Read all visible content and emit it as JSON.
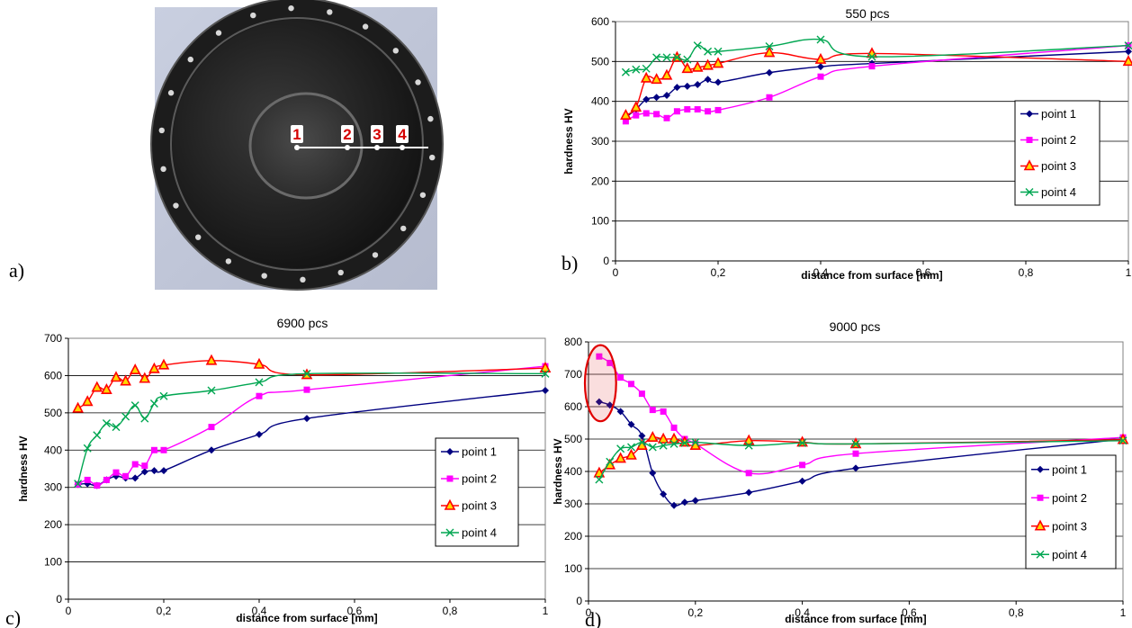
{
  "panel_labels": [
    "a)",
    "b)",
    "c)",
    "d)"
  ],
  "photo": {
    "point_labels": [
      "1",
      "2",
      "3",
      "4"
    ]
  },
  "colors": {
    "point_1": "#000080",
    "point_2": "#ff00ff",
    "point_3": "#ff0000",
    "point_3_marker": "#ffd700",
    "point_4": "#00a651",
    "highlight_ellipse": "#e00000"
  },
  "chart_data": [
    {
      "type": "line",
      "panel": "b)",
      "title": "550 pcs",
      "xlabel": "distance from surface [mm]",
      "ylabel": "hardness HV",
      "xlim": [
        0,
        1
      ],
      "ylim": [
        0,
        600
      ],
      "xticks": [
        0,
        0.2,
        0.4,
        0.6,
        0.8,
        1
      ],
      "xtick_labels": [
        "0",
        "0,2",
        "0,4",
        "0,6",
        "0,8",
        "1"
      ],
      "yticks": [
        0,
        100,
        200,
        300,
        400,
        500,
        600
      ],
      "ytick_labels": [
        "0",
        "100",
        "200",
        "300",
        "400",
        "500",
        "600"
      ],
      "grid": "horizontal",
      "legend": "right",
      "series": [
        {
          "name": "point 1",
          "marker": "diamond",
          "x": [
            0.02,
            0.04,
            0.06,
            0.08,
            0.1,
            0.12,
            0.14,
            0.16,
            0.18,
            0.2,
            0.3,
            0.4,
            0.5,
            1.0
          ],
          "y": [
            360,
            380,
            405,
            410,
            415,
            435,
            438,
            442,
            455,
            448,
            472,
            487,
            495,
            525
          ]
        },
        {
          "name": "point 2",
          "marker": "square",
          "x": [
            0.02,
            0.04,
            0.06,
            0.08,
            0.1,
            0.12,
            0.14,
            0.16,
            0.18,
            0.2,
            0.3,
            0.4,
            0.5,
            1.0
          ],
          "y": [
            350,
            365,
            370,
            368,
            358,
            375,
            380,
            380,
            375,
            378,
            410,
            462,
            488,
            540
          ]
        },
        {
          "name": "point 3",
          "marker": "triangle",
          "x": [
            0.02,
            0.04,
            0.06,
            0.08,
            0.1,
            0.12,
            0.14,
            0.16,
            0.18,
            0.2,
            0.3,
            0.4,
            0.5,
            1.0
          ],
          "y": [
            365,
            385,
            458,
            455,
            465,
            510,
            482,
            485,
            490,
            495,
            522,
            505,
            520,
            500
          ]
        },
        {
          "name": "point 4",
          "marker": "x",
          "x": [
            0.02,
            0.04,
            0.06,
            0.08,
            0.1,
            0.12,
            0.14,
            0.16,
            0.18,
            0.2,
            0.3,
            0.4,
            0.5,
            1.0
          ],
          "y": [
            473,
            480,
            482,
            510,
            510,
            510,
            505,
            540,
            525,
            525,
            538,
            555,
            512,
            540
          ]
        }
      ]
    },
    {
      "type": "line",
      "panel": "c)",
      "title": "6900 pcs",
      "xlabel": "distance from surface [mm]",
      "ylabel": "hardness HV",
      "xlim": [
        0,
        1
      ],
      "ylim": [
        0,
        700
      ],
      "xticks": [
        0,
        0.2,
        0.4,
        0.6,
        0.8,
        1
      ],
      "xtick_labels": [
        "0",
        "0,2",
        "0,4",
        "0,6",
        "0,8",
        "1"
      ],
      "yticks": [
        0,
        100,
        200,
        300,
        400,
        500,
        600,
        700
      ],
      "ytick_labels": [
        "0",
        "100",
        "200",
        "300",
        "400",
        "500",
        "600",
        "700"
      ],
      "grid": "horizontal",
      "legend": "right",
      "series": [
        {
          "name": "point 1",
          "marker": "diamond",
          "x": [
            0.02,
            0.04,
            0.06,
            0.08,
            0.1,
            0.12,
            0.14,
            0.16,
            0.18,
            0.2,
            0.3,
            0.4,
            0.5,
            1.0
          ],
          "y": [
            308,
            310,
            305,
            320,
            330,
            325,
            325,
            342,
            345,
            345,
            400,
            442,
            485,
            560
          ]
        },
        {
          "name": "point 2",
          "marker": "square",
          "x": [
            0.02,
            0.04,
            0.06,
            0.08,
            0.1,
            0.12,
            0.14,
            0.16,
            0.18,
            0.2,
            0.3,
            0.4,
            0.5,
            1.0
          ],
          "y": [
            308,
            320,
            305,
            320,
            340,
            330,
            362,
            358,
            400,
            400,
            462,
            545,
            562,
            625
          ]
        },
        {
          "name": "point 3",
          "marker": "triangle",
          "x": [
            0.02,
            0.04,
            0.06,
            0.08,
            0.1,
            0.12,
            0.14,
            0.16,
            0.18,
            0.2,
            0.3,
            0.4,
            0.5,
            1.0
          ],
          "y": [
            512,
            530,
            568,
            562,
            595,
            585,
            615,
            592,
            618,
            628,
            640,
            630,
            602,
            620
          ]
        },
        {
          "name": "point 4",
          "marker": "x",
          "x": [
            0.02,
            0.04,
            0.06,
            0.08,
            0.1,
            0.12,
            0.14,
            0.16,
            0.18,
            0.2,
            0.3,
            0.4,
            0.5,
            1.0
          ],
          "y": [
            310,
            405,
            440,
            472,
            462,
            490,
            520,
            485,
            525,
            545,
            560,
            582,
            605,
            605
          ]
        }
      ]
    },
    {
      "type": "line",
      "panel": "d)",
      "title": "9000 pcs",
      "xlabel": "distance from surface [mm]",
      "ylabel": "hardness HV",
      "xlim": [
        0,
        1
      ],
      "ylim": [
        0,
        800
      ],
      "xticks": [
        0,
        0.2,
        0.4,
        0.6,
        0.8,
        1
      ],
      "xtick_labels": [
        "0",
        "0,2",
        "0,4",
        "0,6",
        "0,8",
        "1"
      ],
      "yticks": [
        0,
        100,
        200,
        300,
        400,
        500,
        600,
        700,
        800
      ],
      "ytick_labels": [
        "0",
        "100",
        "200",
        "300",
        "400",
        "500",
        "600",
        "700",
        "800"
      ],
      "grid": "horizontal",
      "legend": "right",
      "highlight": {
        "shape": "ellipse",
        "x_range": [
          0.0,
          0.045
        ],
        "y_range": [
          555,
          790
        ]
      },
      "series": [
        {
          "name": "point 1",
          "marker": "diamond",
          "x": [
            0.02,
            0.04,
            0.06,
            0.08,
            0.1,
            0.12,
            0.14,
            0.16,
            0.18,
            0.2,
            0.3,
            0.4,
            0.5,
            1.0
          ],
          "y": [
            615,
            605,
            585,
            545,
            510,
            395,
            330,
            295,
            305,
            310,
            335,
            370,
            410,
            500
          ]
        },
        {
          "name": "point 2",
          "marker": "square",
          "x": [
            0.02,
            0.04,
            0.06,
            0.08,
            0.1,
            0.12,
            0.14,
            0.16,
            0.18,
            0.2,
            0.3,
            0.4,
            0.5,
            1.0
          ],
          "y": [
            755,
            735,
            690,
            670,
            640,
            590,
            585,
            535,
            500,
            485,
            395,
            420,
            455,
            505
          ]
        },
        {
          "name": "point 3",
          "marker": "triangle",
          "x": [
            0.02,
            0.04,
            0.06,
            0.08,
            0.1,
            0.12,
            0.14,
            0.16,
            0.18,
            0.2,
            0.3,
            0.4,
            0.5,
            1.0
          ],
          "y": [
            395,
            420,
            440,
            450,
            480,
            505,
            500,
            500,
            490,
            480,
            495,
            490,
            485,
            498
          ]
        },
        {
          "name": "point 4",
          "marker": "x",
          "x": [
            0.02,
            0.04,
            0.06,
            0.08,
            0.1,
            0.12,
            0.14,
            0.16,
            0.18,
            0.2,
            0.3,
            0.4,
            0.5,
            1.0
          ],
          "y": [
            375,
            430,
            470,
            475,
            490,
            475,
            480,
            485,
            488,
            490,
            480,
            488,
            485,
            495
          ]
        }
      ]
    }
  ]
}
